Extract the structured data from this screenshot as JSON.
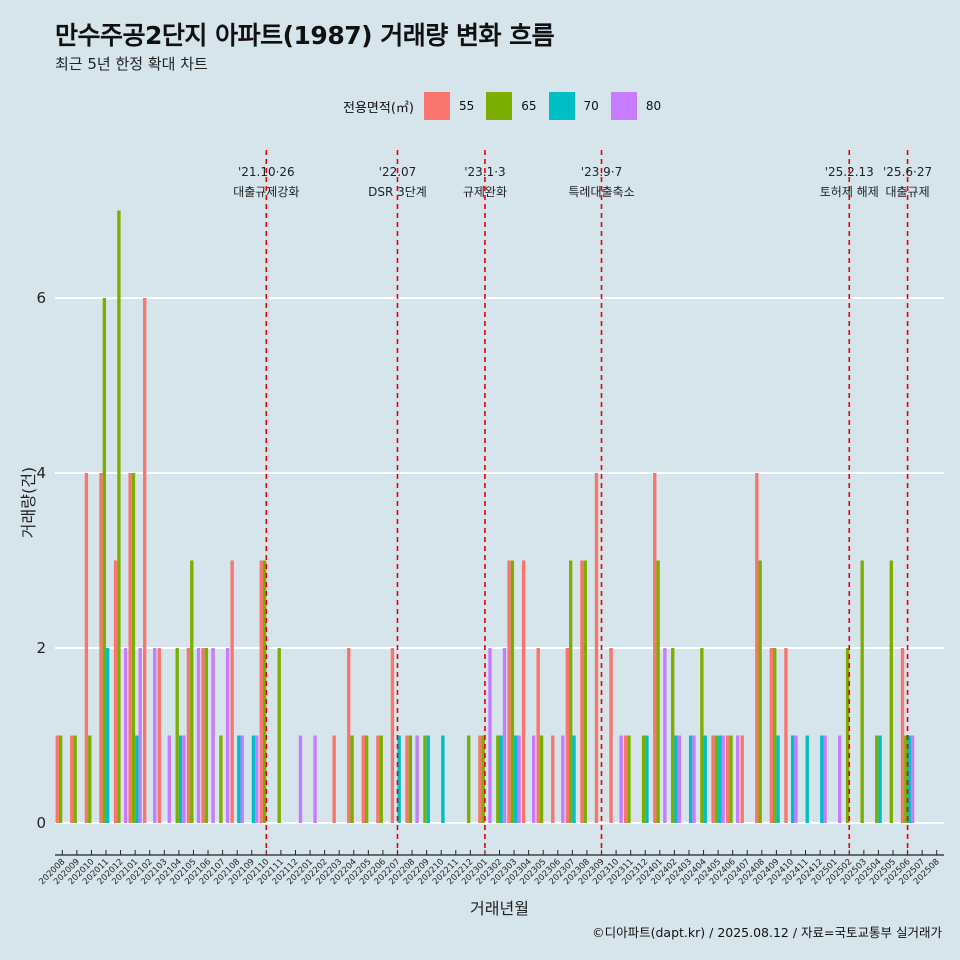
{
  "title": "만수주공2단지 아파트(1987) 거래량 변화 흐름",
  "subtitle": "최근 5년 한정 확대 차트",
  "legend_title": "전용면적(㎡)",
  "footer": "©디아파트(dapt.kr) / 2025.08.12 / 자료=국토교통부 실거래가",
  "colors": {
    "55": "#f8766d",
    "65": "#7cae00",
    "70": "#00bfc4",
    "80": "#c77cff",
    "background": "#d6e4eb",
    "event_line": "#e8000b"
  },
  "chart_data": {
    "type": "bar",
    "xlabel": "거래년월",
    "ylabel": "거래량(건)",
    "ylim": [
      0,
      7
    ],
    "yticks": [
      0,
      2,
      4,
      6
    ],
    "grid": true,
    "legend_position": "top",
    "categories": [
      "202008",
      "202009",
      "202010",
      "202011",
      "202012",
      "202101",
      "202102",
      "202103",
      "202104",
      "202105",
      "202106",
      "202107",
      "202108",
      "202109",
      "202110",
      "202111",
      "202112",
      "202201",
      "202202",
      "202203",
      "202204",
      "202205",
      "202206",
      "202207",
      "202208",
      "202209",
      "202210",
      "202211",
      "202212",
      "202301",
      "202302",
      "202303",
      "202304",
      "202305",
      "202306",
      "202307",
      "202308",
      "202309",
      "202310",
      "202311",
      "202312",
      "202401",
      "202402",
      "202403",
      "202404",
      "202405",
      "202406",
      "202407",
      "202408",
      "202409",
      "202410",
      "202411",
      "202412",
      "202501",
      "202502",
      "202503",
      "202504",
      "202505",
      "202506",
      "202507",
      "202508"
    ],
    "series": [
      {
        "name": "55",
        "values": [
          1,
          1,
          4,
          4,
          3,
          4,
          6,
          2,
          0,
          2,
          2,
          0,
          3,
          0,
          3,
          0,
          0,
          0,
          0,
          1,
          2,
          1,
          1,
          2,
          1,
          0,
          0,
          0,
          0,
          1,
          0,
          3,
          3,
          2,
          1,
          2,
          3,
          4,
          2,
          1,
          0,
          4,
          0,
          0,
          0,
          1,
          1,
          1,
          4,
          2,
          2,
          0,
          0,
          0,
          0,
          0,
          0,
          0,
          2,
          0,
          0
        ]
      },
      {
        "name": "65",
        "values": [
          1,
          1,
          1,
          6,
          7,
          4,
          0,
          0,
          2,
          3,
          2,
          1,
          0,
          0,
          3,
          2,
          0,
          0,
          0,
          0,
          1,
          1,
          1,
          0,
          1,
          1,
          0,
          0,
          1,
          1,
          1,
          3,
          0,
          1,
          0,
          3,
          3,
          0,
          0,
          1,
          1,
          3,
          2,
          0,
          2,
          1,
          1,
          0,
          3,
          2,
          0,
          0,
          0,
          0,
          2,
          3,
          1,
          3,
          1,
          0,
          0
        ]
      },
      {
        "name": "70",
        "values": [
          0,
          0,
          0,
          2,
          0,
          1,
          0,
          0,
          1,
          0,
          0,
          0,
          1,
          1,
          0,
          0,
          0,
          0,
          0,
          0,
          0,
          0,
          0,
          1,
          0,
          1,
          1,
          0,
          0,
          0,
          1,
          1,
          0,
          0,
          0,
          1,
          0,
          0,
          0,
          0,
          1,
          0,
          1,
          1,
          1,
          1,
          0,
          0,
          0,
          1,
          1,
          1,
          1,
          0,
          0,
          0,
          1,
          0,
          1,
          0,
          0
        ]
      },
      {
        "name": "80",
        "values": [
          0,
          0,
          0,
          0,
          2,
          2,
          2,
          1,
          1,
          2,
          2,
          2,
          1,
          1,
          0,
          0,
          1,
          1,
          0,
          0,
          0,
          0,
          0,
          0,
          1,
          0,
          0,
          0,
          0,
          2,
          2,
          1,
          1,
          0,
          1,
          0,
          0,
          0,
          1,
          0,
          0,
          2,
          1,
          1,
          0,
          1,
          1,
          0,
          0,
          0,
          1,
          0,
          1,
          1,
          0,
          0,
          0,
          0,
          1,
          0,
          0
        ]
      }
    ],
    "events": [
      {
        "date_label": "'21.10·26",
        "label": "대출규제강화",
        "category": "202110"
      },
      {
        "date_label": "'22.07",
        "label": "DSR 3단계",
        "category": "202207"
      },
      {
        "date_label": "'23.1·3",
        "label": "규제완화",
        "category": "202301"
      },
      {
        "date_label": "'23.9·7",
        "label": "특례대출축소",
        "category": "202309"
      },
      {
        "date_label": "'25.2.13",
        "label": "토허제 해제",
        "category": "202502"
      },
      {
        "date_label": "'25.6·27",
        "label": "대출규제",
        "category": "202506"
      }
    ]
  }
}
